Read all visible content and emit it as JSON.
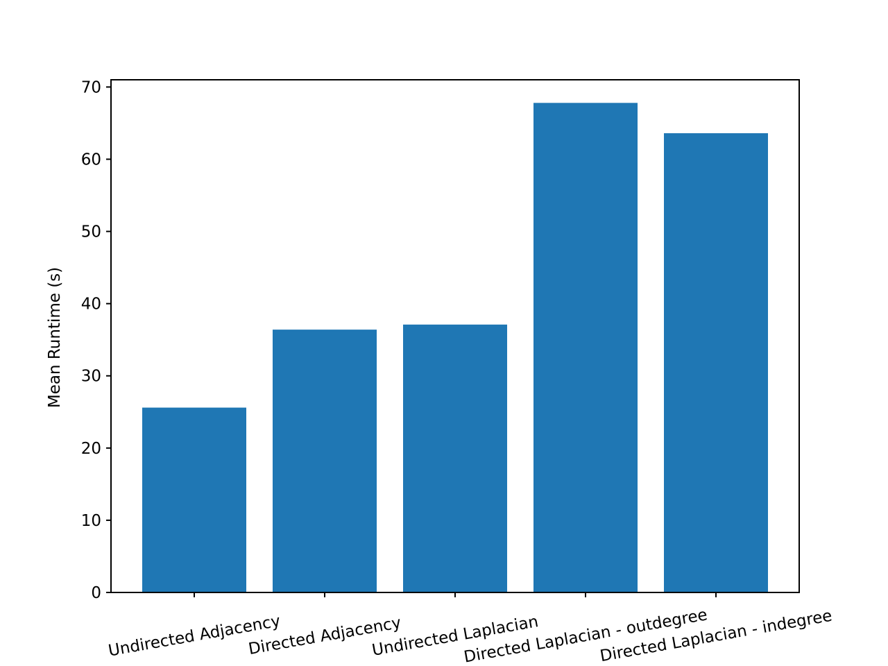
{
  "chart_data": {
    "type": "bar",
    "title": "",
    "xlabel": "",
    "ylabel": "Mean Runtime (s)",
    "categories": [
      "Undirected Adjacency",
      "Directed Adjacency",
      "Undirected Laplacian",
      "Directed Laplacian - outdegree",
      "Directed Laplacian - indegree"
    ],
    "values": [
      25.6,
      36.4,
      37.1,
      67.8,
      63.6
    ],
    "ylim": [
      0,
      71
    ],
    "yticks": [
      0,
      10,
      20,
      30,
      40,
      50,
      60,
      70
    ],
    "grid": false,
    "legend": "none",
    "bar_color": "#1f77b4",
    "x_tick_rotation_deg": 10
  }
}
